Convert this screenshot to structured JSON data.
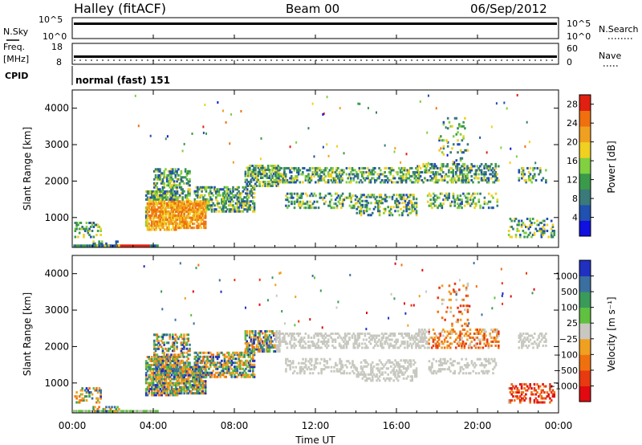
{
  "header": {
    "station": "Halley (fitACF)",
    "beam": "Beam 00",
    "date": "06/Sep/2012"
  },
  "nsky_panel": {
    "left_label": "N.Sky",
    "left_ticks": [
      "10^5",
      "10^0"
    ],
    "right_label": "N.Search",
    "right_ticks": [
      "10^5",
      "10^0"
    ]
  },
  "freq_panel": {
    "left_label_1": "Freq.",
    "left_label_2": "[MHz]",
    "left_ticks": [
      "18",
      "8"
    ],
    "right_label": "Nave",
    "right_ticks": [
      "60",
      "0"
    ]
  },
  "cpid_panel": {
    "label": "CPID",
    "value": "normal (fast) 151"
  },
  "colors": {
    "power_scale": [
      "#1010e0",
      "#2050b0",
      "#3a7a7a",
      "#3a9a4a",
      "#80d040",
      "#f0d020",
      "#f0a020",
      "#f07010",
      "#e02010"
    ],
    "velocity_scale": [
      "#2030c0",
      "#3a70a0",
      "#3a9a5a",
      "#60c040",
      "#c8c8c0",
      "#f0a020",
      "#f07010",
      "#e83a10",
      "#e00a10"
    ]
  },
  "chart_data": [
    {
      "type": "heatmap",
      "title": "Power",
      "xlabel": "Time UT",
      "ylabel": "Slant Range [km]",
      "x_ticks": [
        "00:00",
        "04:00",
        "08:00",
        "12:00",
        "16:00",
        "20:00",
        "00:00"
      ],
      "y_ticks": [
        "1000",
        "2000",
        "3000",
        "4000"
      ],
      "xlim_hours": [
        0,
        24
      ],
      "ylim_km": [
        180,
        4500
      ],
      "colorbar": {
        "label": "Power [dB]",
        "ticks": [
          "4",
          "8",
          "12",
          "16",
          "20",
          "24",
          "28"
        ],
        "range": [
          0,
          30
        ]
      }
    },
    {
      "type": "heatmap",
      "title": "Velocity",
      "xlabel": "Time UT",
      "ylabel": "Slant Range [km]",
      "x_ticks": [
        "00:00",
        "04:00",
        "08:00",
        "12:00",
        "16:00",
        "20:00",
        "00:00"
      ],
      "y_ticks": [
        "1000",
        "2000",
        "3000",
        "4000"
      ],
      "xlim_hours": [
        0,
        24
      ],
      "ylim_km": [
        180,
        4500
      ],
      "colorbar": {
        "label": "Velocity [m s⁻¹]",
        "ticks": [
          "1000",
          "500",
          "100",
          "25",
          "−25",
          "−100",
          "−500",
          "−1000"
        ],
        "range": [
          -1000,
          1000
        ]
      }
    }
  ],
  "x_axis_label": "Time UT"
}
